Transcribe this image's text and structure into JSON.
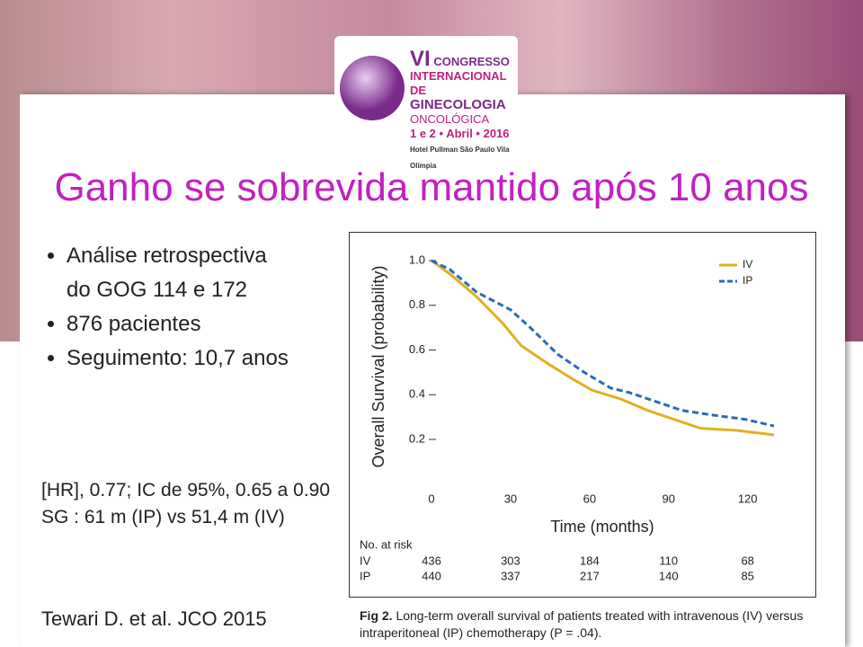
{
  "logo": {
    "edition": "VI",
    "lines": [
      "CONGRESSO",
      "INTERNACIONAL DE",
      "GINECOLOGIA",
      "ONCOLÓGICA"
    ],
    "date": "1 e 2 • Abril • 2016",
    "venue": "Hotel Pullman São Paulo Vila Olímpia"
  },
  "title": "Ganho se sobrevida mantido após 10 anos",
  "bullets": [
    "Análise retrospectiva do GOG 114 e 172",
    "876 pacientes",
    "Seguimento: 10,7 anos"
  ],
  "notes": [
    "[HR], 0.77; IC de 95%, 0.65 a 0.90",
    "SG : 61 m (IP) vs 51,4 m (IV)"
  ],
  "reference": "Tewari D. et al. JCO 2015",
  "chart_data": {
    "type": "line",
    "ylabel": "Overall Survival (probability)",
    "xlabel": "Time (months)",
    "xlim": [
      0,
      130
    ],
    "xticks": [
      0,
      30,
      60,
      90,
      120
    ],
    "ylim": [
      0.2,
      1.0
    ],
    "yticks": [
      {
        "value": 1,
        "label": "1.0"
      },
      0.8,
      0.6,
      0.4,
      0.2
    ],
    "grid": false,
    "legend": "upper right",
    "series": [
      {
        "name": "IV",
        "color": "#e0b020",
        "dash": false,
        "x": [
          0,
          7,
          17,
          27,
          34,
          44,
          55,
          61,
          72,
          82,
          92,
          102,
          116,
          130
        ],
        "values": [
          1,
          0.94,
          0.84,
          0.72,
          0.62,
          0.54,
          0.46,
          0.42,
          0.38,
          0.33,
          0.29,
          0.25,
          0.24,
          0.22
        ]
      },
      {
        "name": "IP",
        "color": "#2a6bb5",
        "dash": true,
        "x": [
          0,
          7,
          17,
          30,
          37.5,
          48,
          58,
          68,
          75,
          85,
          95,
          106,
          119,
          130
        ],
        "values": [
          1,
          0.96,
          0.86,
          0.78,
          0.7,
          0.58,
          0.5,
          0.43,
          0.41,
          0.37,
          0.33,
          0.31,
          0.29,
          0.26
        ]
      }
    ],
    "risk_table": {
      "title": "No. at risk",
      "rows": [
        {
          "name": "IV",
          "values": [
            436,
            303,
            184,
            110,
            68
          ]
        },
        {
          "name": "IP",
          "values": [
            440,
            337,
            217,
            140,
            85
          ]
        }
      ]
    },
    "caption": {
      "label": "Fig 2.",
      "text": "Long-term overall survival of patients treated with intravenous (IV) versus intraperitoneal (IP) chemotherapy (P = .04)."
    }
  }
}
